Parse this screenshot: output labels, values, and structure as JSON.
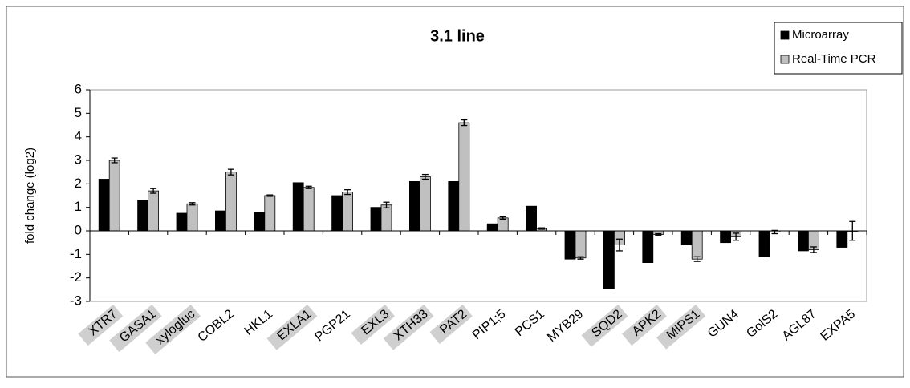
{
  "chart_data": {
    "type": "bar",
    "title": "3.1 line",
    "y_label": "fold change (log2)",
    "categories": [
      "XTR7",
      "GASA1",
      "xylogluc",
      "COBL2",
      "HKL1",
      "EXLA1",
      "PGP21",
      "EXL3",
      "XTH33",
      "PAT2",
      "PIP1;5",
      "PCS1",
      "MYB29",
      "SQD2",
      "APK2",
      "MIPS1",
      "GUN4",
      "GolS2",
      "AGL87",
      "EXPA5"
    ],
    "highlighted": [
      true,
      true,
      true,
      false,
      false,
      true,
      false,
      true,
      true,
      true,
      false,
      false,
      false,
      true,
      true,
      true,
      false,
      false,
      false,
      false
    ],
    "series": [
      {
        "name": "Microarray",
        "color": "#000000",
        "values": [
          2.2,
          1.3,
          0.75,
          0.85,
          0.8,
          2.05,
          1.5,
          1.0,
          2.1,
          2.1,
          0.3,
          1.05,
          -1.2,
          -2.45,
          -1.35,
          -0.6,
          -0.5,
          -1.1,
          -0.85,
          -0.7
        ]
      },
      {
        "name": "Real-Time PCR",
        "color": "#c0c0c0",
        "values": [
          3.0,
          1.7,
          1.15,
          2.5,
          1.5,
          1.85,
          1.65,
          1.1,
          2.3,
          4.6,
          0.55,
          0.1,
          -1.15,
          -0.6,
          -0.15,
          -1.2,
          -0.25,
          -0.05,
          -0.8,
          0.0
        ],
        "errors": [
          0.1,
          0.1,
          0.05,
          0.12,
          0.03,
          0.05,
          0.1,
          0.12,
          0.1,
          0.12,
          0.05,
          0.03,
          0.05,
          0.25,
          0.03,
          0.1,
          0.15,
          0.07,
          0.12,
          0.4
        ]
      }
    ],
    "ylim": [
      -3,
      6
    ],
    "yticks": [
      -3,
      -2,
      -1,
      0,
      1,
      2,
      3,
      4,
      5,
      6
    ],
    "grid": false,
    "legend": "top-right"
  }
}
